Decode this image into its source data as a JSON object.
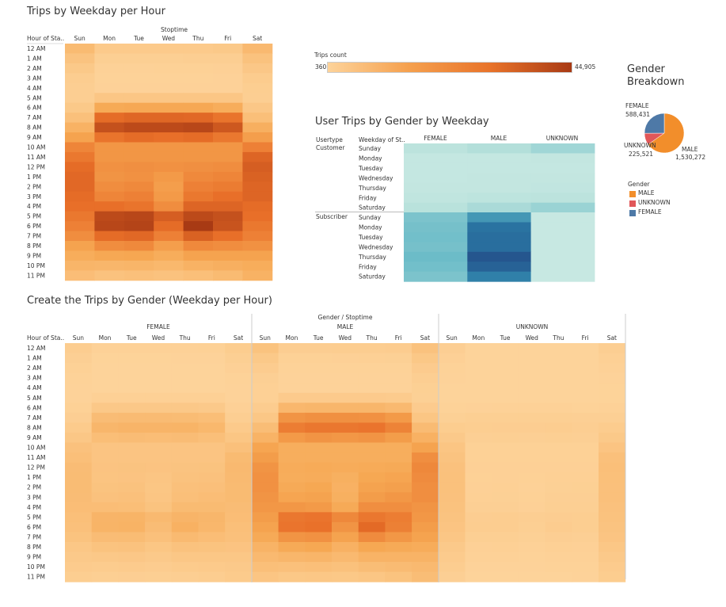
{
  "titles": {
    "weekday_hour": "Trips by Weekday per Hour",
    "user_trips": "User Trips by Gender by Weekday",
    "gender_breakdown_line1": "Gender",
    "gender_breakdown_line2": "Breakdown",
    "gender_hour": "Create the Trips by Gender (Weekday per Hour)"
  },
  "legend": {
    "trips_count_label": "Trips count",
    "min_label": "360",
    "max_label": "44,905",
    "min": 360,
    "max": 44905,
    "color_low": "#fdd39a",
    "color_high": "#a83a14"
  },
  "labels": {
    "stoptime": "Stoptime",
    "hour_of_start": "Hour of Sta..",
    "gender_stoptime": "Gender / Stoptime",
    "usertype": "Usertype",
    "weekday_of_st": "Weekday of St..",
    "gender_legend_title": "Gender"
  },
  "chart_data": [
    {
      "type": "heatmap",
      "title": "Trips by Weekday per Hour",
      "x_title": "Stoptime",
      "y_title": "Hour of Sta..",
      "days": [
        "Sun",
        "Mon",
        "Tue",
        "Wed",
        "Thu",
        "Fri",
        "Sat"
      ],
      "hours": [
        "12 AM",
        "1 AM",
        "2 AM",
        "3 AM",
        "4 AM",
        "5 AM",
        "6 AM",
        "7 AM",
        "8 AM",
        "9 AM",
        "10 AM",
        "11 AM",
        "12 PM",
        "1 PM",
        "2 PM",
        "3 PM",
        "4 PM",
        "5 PM",
        "6 PM",
        "7 PM",
        "8 PM",
        "9 PM",
        "10 PM",
        "11 PM"
      ],
      "values": [
        [
          9000,
          3500,
          3500,
          3600,
          3700,
          4000,
          9500
        ],
        [
          6000,
          1800,
          1800,
          1900,
          2000,
          2200,
          6500
        ],
        [
          4000,
          1100,
          1100,
          1200,
          1200,
          1300,
          4500
        ],
        [
          2500,
          800,
          800,
          800,
          800,
          900,
          3000
        ],
        [
          2000,
          900,
          900,
          900,
          900,
          900,
          2300
        ],
        [
          2000,
          5000,
          5000,
          5000,
          5000,
          4800,
          2200
        ],
        [
          4000,
          15000,
          15500,
          15500,
          15500,
          14000,
          4500
        ],
        [
          7000,
          30000,
          31500,
          31500,
          31000,
          28000,
          7500
        ],
        [
          12000,
          38000,
          40000,
          40000,
          41000,
          36000,
          13000
        ],
        [
          17000,
          28000,
          30000,
          29000,
          30000,
          27000,
          18000
        ],
        [
          24000,
          20000,
          20000,
          20000,
          20000,
          20000,
          25000
        ],
        [
          27000,
          20000,
          20000,
          20000,
          20000,
          20000,
          32000
        ],
        [
          30000,
          21000,
          21500,
          21000,
          21500,
          22000,
          34000
        ],
        [
          31000,
          20500,
          21000,
          19000,
          23000,
          24000,
          33000
        ],
        [
          31000,
          22000,
          23000,
          18000,
          25000,
          26000,
          32000
        ],
        [
          30000,
          24000,
          25000,
          19000,
          27000,
          29000,
          32000
        ],
        [
          29000,
          29000,
          28000,
          22000,
          32000,
          32000,
          30000
        ],
        [
          27000,
          40000,
          41000,
          34000,
          40000,
          38000,
          29000
        ],
        [
          25000,
          41000,
          42000,
          30000,
          44905,
          37000,
          27000
        ],
        [
          22000,
          30000,
          31000,
          25000,
          33000,
          29000,
          25000
        ],
        [
          17000,
          22000,
          23000,
          18000,
          23000,
          22000,
          21000
        ],
        [
          14000,
          15500,
          16000,
          14000,
          17000,
          17000,
          17000
        ],
        [
          11000,
          10500,
          11000,
          10000,
          12000,
          13000,
          14000
        ],
        [
          8000,
          6500,
          7000,
          6500,
          7500,
          9000,
          12000
        ]
      ]
    },
    {
      "type": "heatmap",
      "title": "User Trips by Gender by Weekday",
      "columns": [
        "FEMALE",
        "MALE",
        "UNKNOWN"
      ],
      "groups": [
        {
          "usertype": "Customer",
          "weekdays": [
            "Sunday",
            "Monday",
            "Tuesday",
            "Wednesday",
            "Thursday",
            "Friday",
            "Saturday"
          ],
          "values": [
            [
              0.28,
              0.32,
              0.38
            ],
            [
              0.22,
              0.22,
              0.23
            ],
            [
              0.22,
              0.22,
              0.22
            ],
            [
              0.22,
              0.23,
              0.23
            ],
            [
              0.23,
              0.23,
              0.24
            ],
            [
              0.25,
              0.27,
              0.28
            ],
            [
              0.3,
              0.35,
              0.4
            ]
          ]
        },
        {
          "usertype": "Subscriber",
          "weekdays": [
            "Sunday",
            "Monday",
            "Tuesday",
            "Wednesday",
            "Thursday",
            "Friday",
            "Saturday"
          ],
          "values": [
            [
              0.5,
              0.7,
              0.2
            ],
            [
              0.52,
              0.83,
              0.2
            ],
            [
              0.53,
              0.85,
              0.2
            ],
            [
              0.52,
              0.85,
              0.2
            ],
            [
              0.55,
              0.95,
              0.2
            ],
            [
              0.53,
              0.9,
              0.2
            ],
            [
              0.5,
              0.78,
              0.2
            ]
          ]
        }
      ]
    },
    {
      "type": "pie",
      "title": "Gender Breakdown",
      "slices": [
        {
          "label": "MALE",
          "value": 1530272,
          "value_label": "1,530,272",
          "color": "#f28e2b"
        },
        {
          "label": "UNKNOWN",
          "value": 225521,
          "value_label": "225,521",
          "color": "#e15759"
        },
        {
          "label": "FEMALE",
          "value": 588431,
          "value_label": "588,431",
          "color": "#4e79a7"
        }
      ]
    },
    {
      "type": "heatmap",
      "title": "Create the Trips by Gender (Weekday per Hour)",
      "x_title": "Gender / Stoptime",
      "y_title": "Hour of Sta..",
      "genders": [
        "FEMALE",
        "MALE",
        "UNKNOWN"
      ],
      "days": [
        "Sun",
        "Mon",
        "Tue",
        "Wed",
        "Thu",
        "Fri",
        "Sat"
      ],
      "hours": [
        "12 AM",
        "1 AM",
        "2 AM",
        "3 AM",
        "4 AM",
        "5 AM",
        "6 AM",
        "7 AM",
        "8 AM",
        "9 AM",
        "10 AM",
        "11 AM",
        "12 PM",
        "1 PM",
        "2 PM",
        "3 PM",
        "4 PM",
        "5 PM",
        "6 PM",
        "7 PM",
        "8 PM",
        "9 PM",
        "10 PM",
        "11 PM"
      ],
      "female_factor": 0.28,
      "male_factor": 0.68,
      "unknown_weekday_factor": 0.06,
      "unknown_weekend_factor": 0.22
    }
  ]
}
